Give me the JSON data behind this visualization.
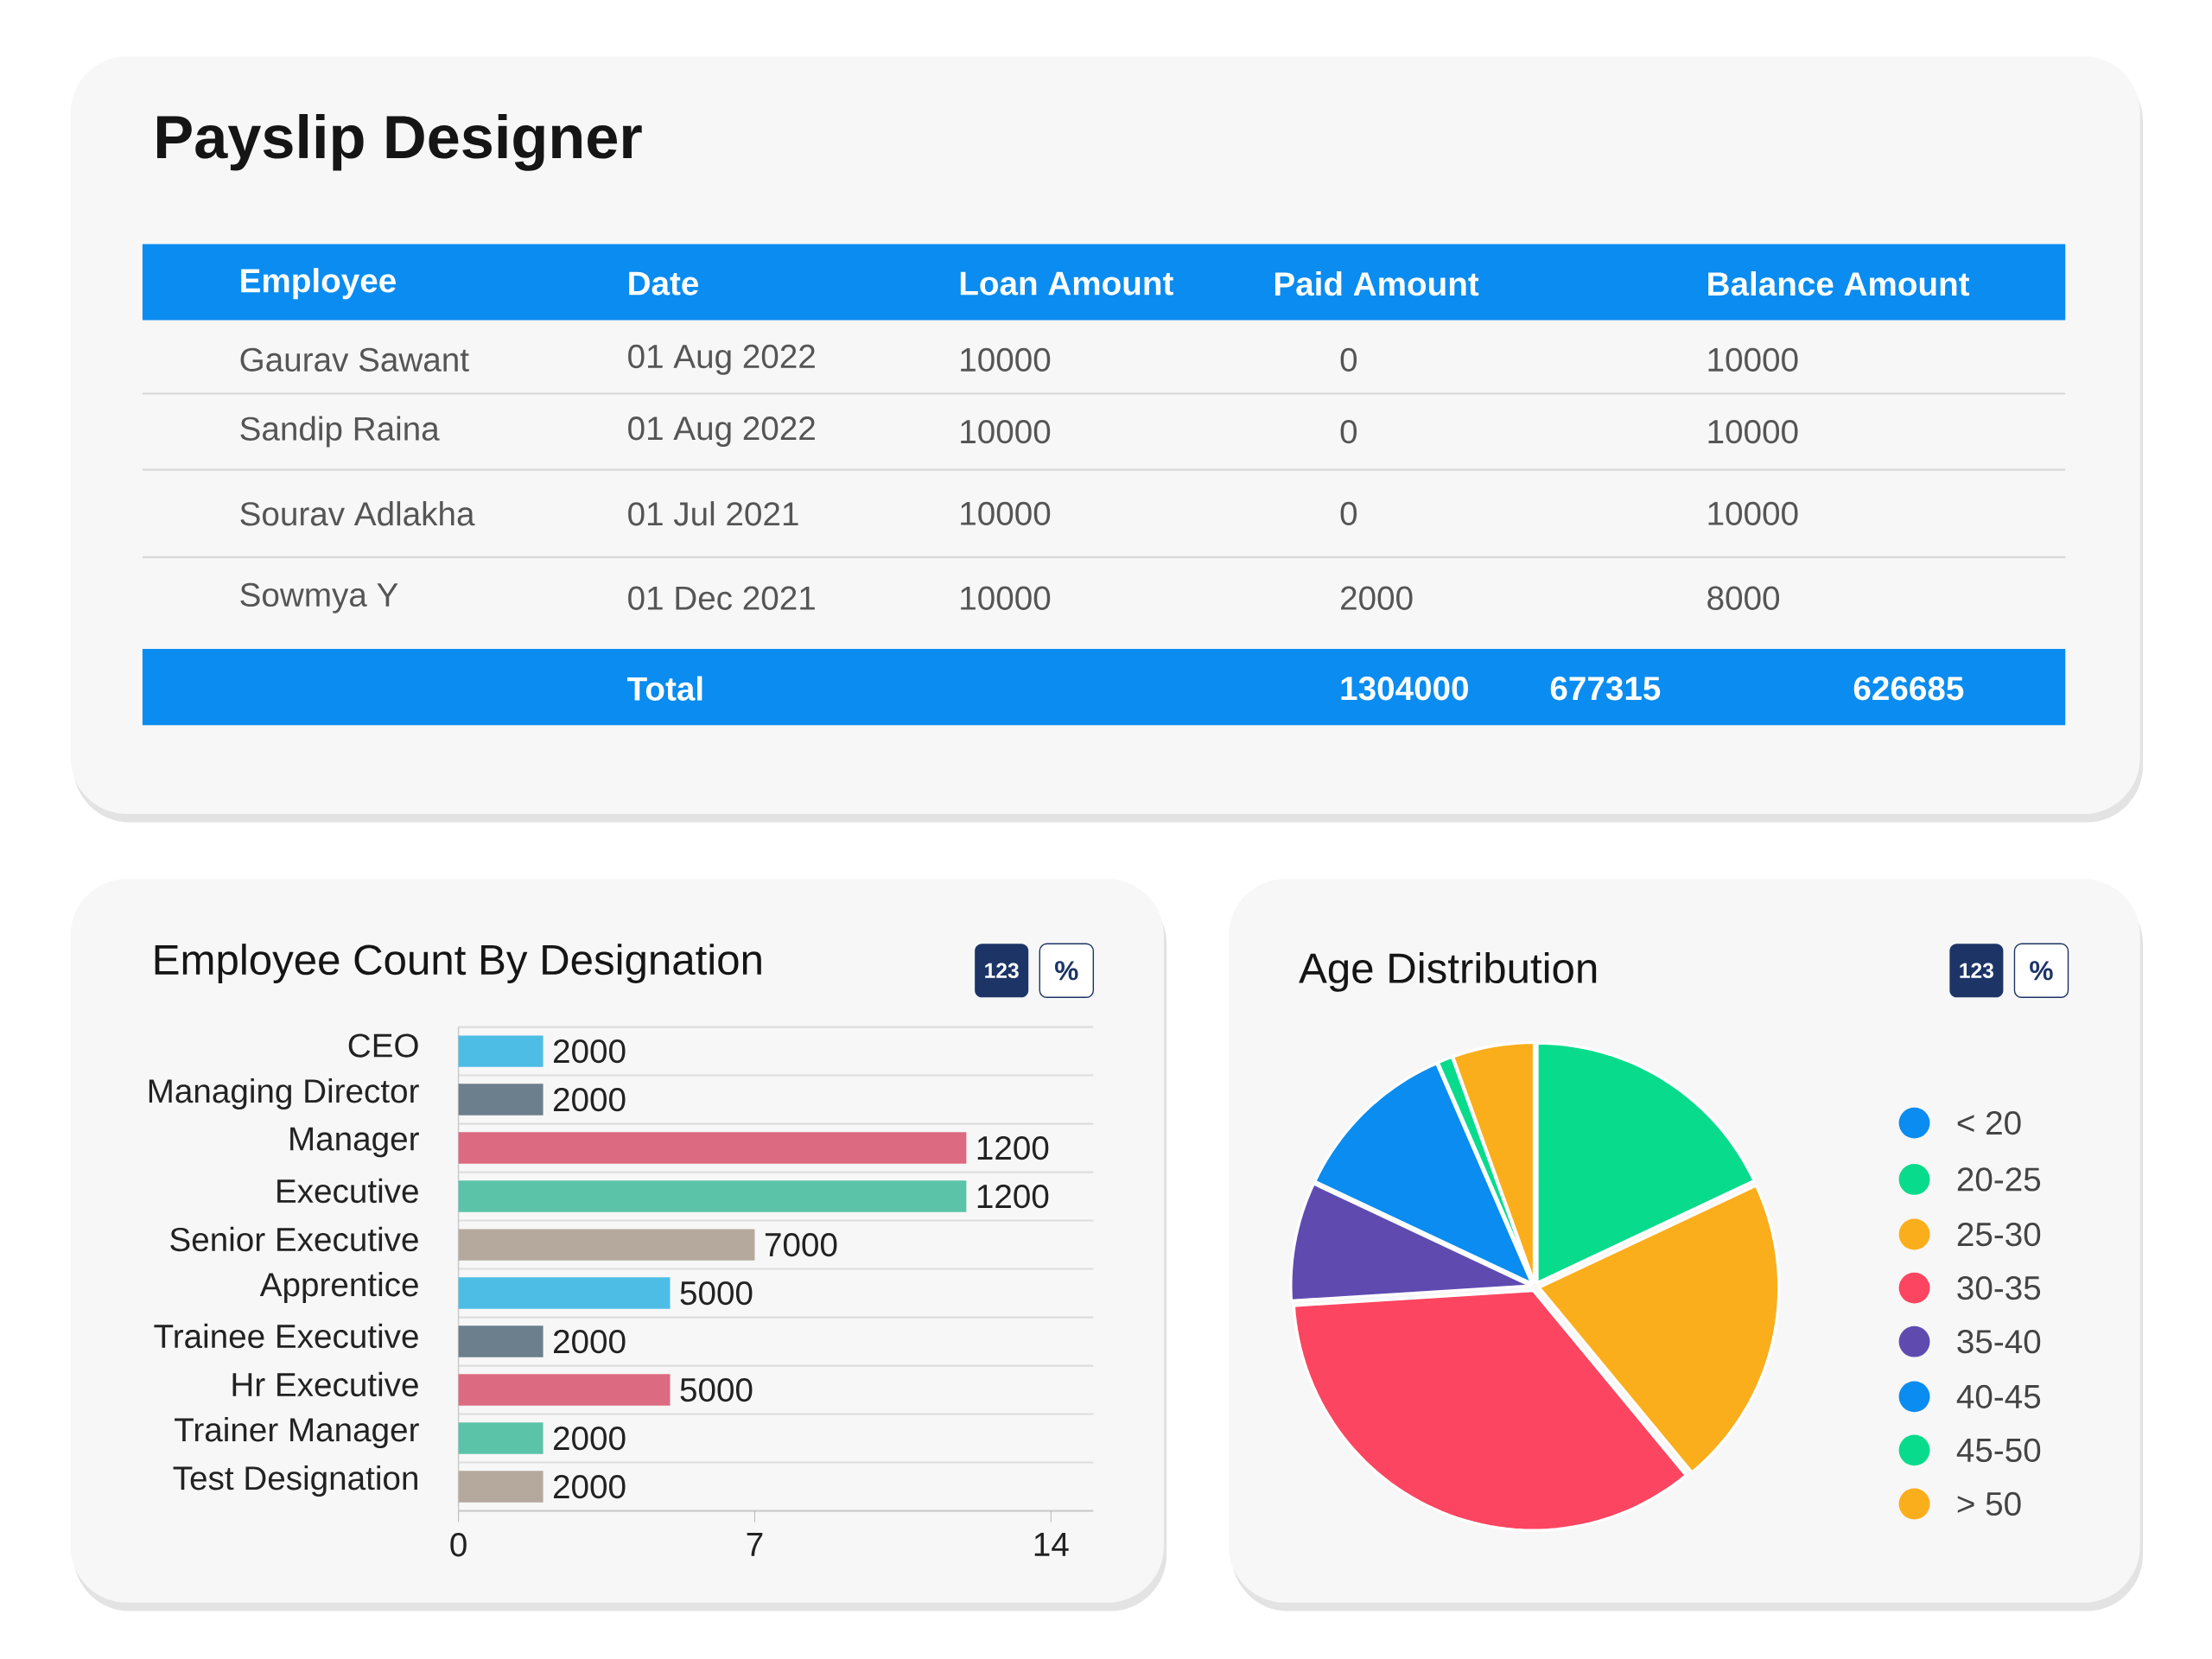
{
  "chart_data": [
    {
      "type": "other",
      "title": "Payslip Designer",
      "categories": [
        "Employee",
        "Date",
        "Loan Amount",
        "Paid Amount",
        "Balance Amount"
      ],
      "annotations": [
        "Gaurav Sawant",
        "01 Aug 2022",
        "10000",
        "0",
        "10000",
        "Sandip Raina",
        "01 Aug 2022",
        "10000",
        "0",
        "10000",
        "Sourav Adlakha",
        "01 Jul 2021",
        "10000",
        "0",
        "10000",
        "Sowmya Y",
        "01 Dec 2021",
        "10000",
        "2000",
        "8000",
        "Total",
        "1304000",
        "677315",
        "626685"
      ]
    },
    {
      "type": "bar",
      "orientation": "horizontal",
      "title": "Employee Count By Designation",
      "categories": [
        "CEO",
        "Managing Director",
        "Manager",
        "Executive",
        "Senior Executive",
        "Apprentice",
        "Trainee Executive",
        "Hr Executive",
        "Trainer Manager",
        "Test Designation"
      ],
      "values": [
        2,
        2,
        12,
        12,
        7,
        5,
        2,
        5,
        2,
        2
      ],
      "colors": [
        "#4dbde6",
        "#6c7f8c",
        "#dc6b82",
        "#5bc4a8",
        "#b5a99e",
        "#4dbde6",
        "#6c7f8c",
        "#dc6b82",
        "#5bc4a8",
        "#b5a99e"
      ],
      "xlim": [
        0,
        15
      ],
      "xticks": [
        0,
        7,
        14
      ],
      "grid": "y",
      "annotations": [
        "123",
        "%",
        {
          "text": "2000",
          "x": 2
        },
        {
          "text": "2000",
          "x": 2
        },
        {
          "text": "1200",
          "x": 12
        },
        {
          "text": "1200",
          "x": 12
        },
        {
          "text": "7000",
          "x": 7
        },
        {
          "text": "5000",
          "x": 5
        },
        {
          "text": "2000",
          "x": 2
        },
        {
          "text": "5000",
          "x": 5
        },
        {
          "text": "2000",
          "x": 2
        },
        {
          "text": "2000",
          "x": 2
        }
      ]
    },
    {
      "type": "pie",
      "title": "Age Distribution",
      "categories": [
        "< 20",
        "20-25",
        "25-30",
        "30-35",
        "35-40",
        "40-45",
        "45-50",
        "> 50"
      ],
      "values": [
        0,
        18,
        21,
        35,
        8,
        11.5,
        1,
        5.5
      ],
      "colors": [
        "#0a8cf0",
        "#08dc8c",
        "#fbae1b",
        "#fc4560",
        "#5f4bb0",
        "#0a8cf0",
        "#08dc8c",
        "#fbae1b"
      ],
      "legend": "right",
      "annotations": [
        "123",
        "%"
      ]
    }
  ]
}
